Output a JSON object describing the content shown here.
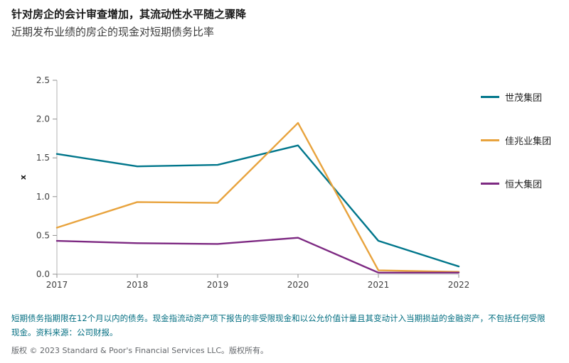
{
  "header": {
    "title": "针对房企的会计审查增加，其流动性水平随之骤降",
    "subtitle": "近期发布业绩的房企的现金对短期债务比率"
  },
  "chart_data": {
    "type": "line",
    "title": "近期发布业绩的房企的现金对短期债务比率",
    "categories": [
      "2017",
      "2018",
      "2019",
      "2020",
      "2021",
      "2022"
    ],
    "series": [
      {
        "name": "世茂集团",
        "color": "#00768b",
        "values": [
          1.55,
          1.39,
          1.41,
          1.66,
          0.43,
          0.1
        ]
      },
      {
        "name": "佳兆业集团",
        "color": "#e8a33d",
        "values": [
          0.6,
          0.93,
          0.92,
          1.95,
          0.05,
          0.03
        ]
      },
      {
        "name": "恒大集团",
        "color": "#7d2982",
        "values": [
          0.43,
          0.4,
          0.39,
          0.47,
          0.02,
          0.02
        ]
      }
    ],
    "xlabel": "",
    "ylabel": "x",
    "ylim": [
      0,
      2.5
    ],
    "yticks": [
      0.0,
      0.5,
      1.0,
      1.5,
      2.0,
      2.5
    ],
    "grid": false,
    "legend_position": "right",
    "axis_color": "#b3b3b3",
    "tick_color": "#8f8f8f"
  },
  "footnote": {
    "note": "短期债务指期限在12个月以内的债务。现金指流动资产项下报告的非受限现金和以公允价值计量且其变动计入当期损益的金融资产，不包括任何受限现金。资料来源：公司财报。",
    "copyright": "版权 © 2023 Standard & Poor's Financial Services LLC。版权所有。"
  }
}
